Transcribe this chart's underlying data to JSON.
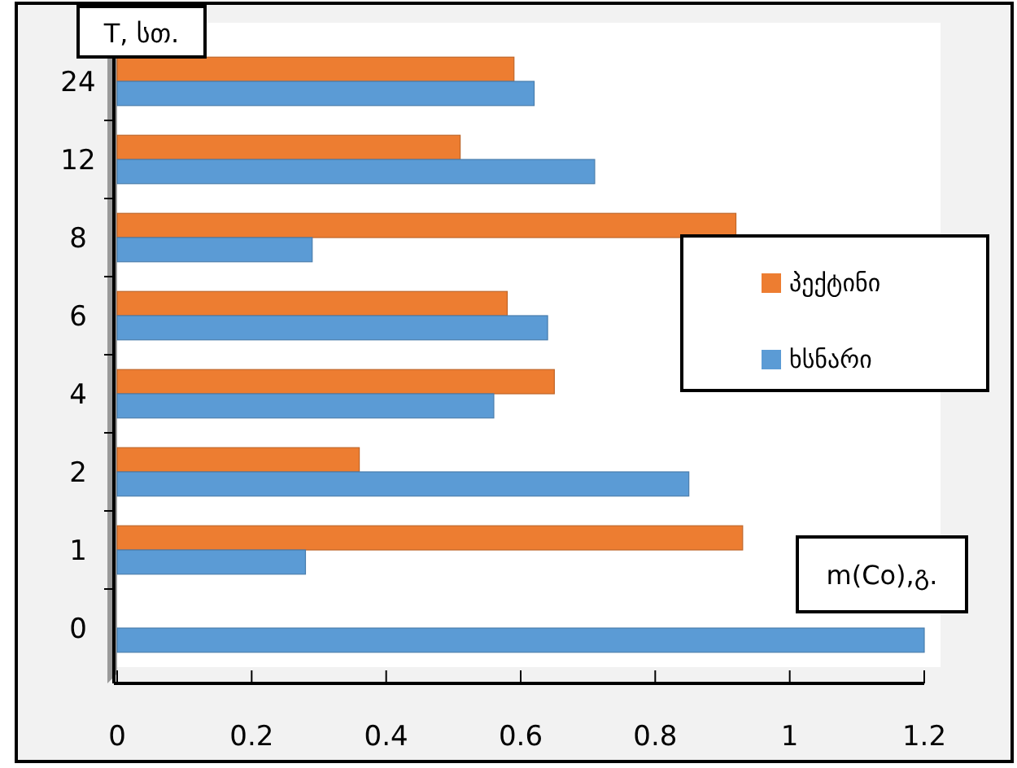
{
  "chart_data": {
    "type": "bar",
    "orientation": "horizontal",
    "xlabel": "m(Co),გ.",
    "ylabel": "T, სთ.",
    "categories": [
      "24",
      "12",
      "8",
      "6",
      "4",
      "2",
      "1",
      "0"
    ],
    "series": [
      {
        "name": "პექტინი",
        "color": "#ed7d31",
        "values": [
          0.59,
          0.51,
          0.92,
          0.58,
          0.65,
          0.36,
          0.93,
          0
        ]
      },
      {
        "name": "ხსნარი",
        "color": "#5b9bd5",
        "values": [
          0.62,
          0.71,
          0.29,
          0.64,
          0.56,
          0.85,
          0.28,
          1.2
        ]
      }
    ],
    "xlim": [
      0,
      1.2
    ],
    "xticks": [
      0,
      0.2,
      0.4,
      0.6,
      0.8,
      1,
      1.2
    ],
    "grid": false,
    "legend": "right"
  }
}
